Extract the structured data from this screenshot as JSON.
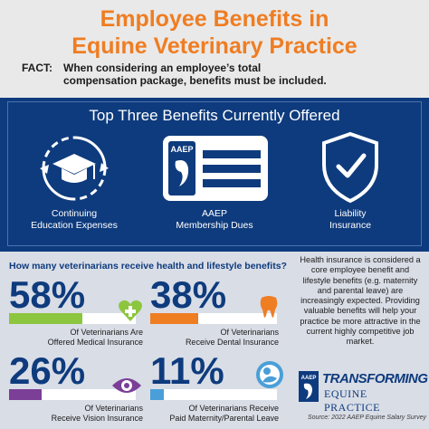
{
  "header": {
    "title_line1": "Employee Benefits in",
    "title_line2": "Equine Veterinary Practice",
    "fact_label": "FACT:",
    "fact_text": "When considering an employee’s total compensation package, benefits must be included."
  },
  "benefits": {
    "title": "Top Three Benefits Currently Offered",
    "items": [
      {
        "line1": "Continuing",
        "line2": "Education Expenses",
        "icon": "graduation-cap-icon"
      },
      {
        "line1": "AAEP",
        "line2": "Membership Dues",
        "icon": "membership-card-icon"
      },
      {
        "line1": "Liability",
        "line2": "Insurance",
        "icon": "shield-check-icon"
      }
    ],
    "card_text": "AAEP"
  },
  "stats": {
    "question": "How many veterinarians receive health and lifestyle benefits?",
    "items": [
      {
        "value": "58%",
        "fraction": 0.58,
        "color": "#8cc63f",
        "line1": "Of Veterinarians Are",
        "line2": "Offered Medical Insurance",
        "icon": "heart-plus-icon"
      },
      {
        "value": "38%",
        "fraction": 0.38,
        "color": "#ef7d22",
        "line1": "Of Veterinarians",
        "line2": "Receive Dental Insurance",
        "icon": "tooth-icon"
      },
      {
        "value": "26%",
        "fraction": 0.26,
        "color": "#7b3f98",
        "line1": "Of Veterinarians",
        "line2": "Receive Vision Insurance",
        "icon": "eye-icon"
      },
      {
        "value": "11%",
        "fraction": 0.11,
        "color": "#4a9fd8",
        "line1": "Of Veterinarians Receive",
        "line2": "Paid Maternity/Parental Leave",
        "icon": "baby-icon"
      }
    ]
  },
  "side_text": "Health insurance is considered a core employee benefit and lifestyle benefits (e.g. maternity and parental leave) are increasingly expected. Providing valuable benefits will help your practice be more attractive in the current highly competitive job market.",
  "logo": {
    "line1": "TRANSFORMING",
    "line2": "EQUINE PRACTICE",
    "badge": "AAEP"
  },
  "source": "Source: 2022 AAEP Equine Salary Survey"
}
